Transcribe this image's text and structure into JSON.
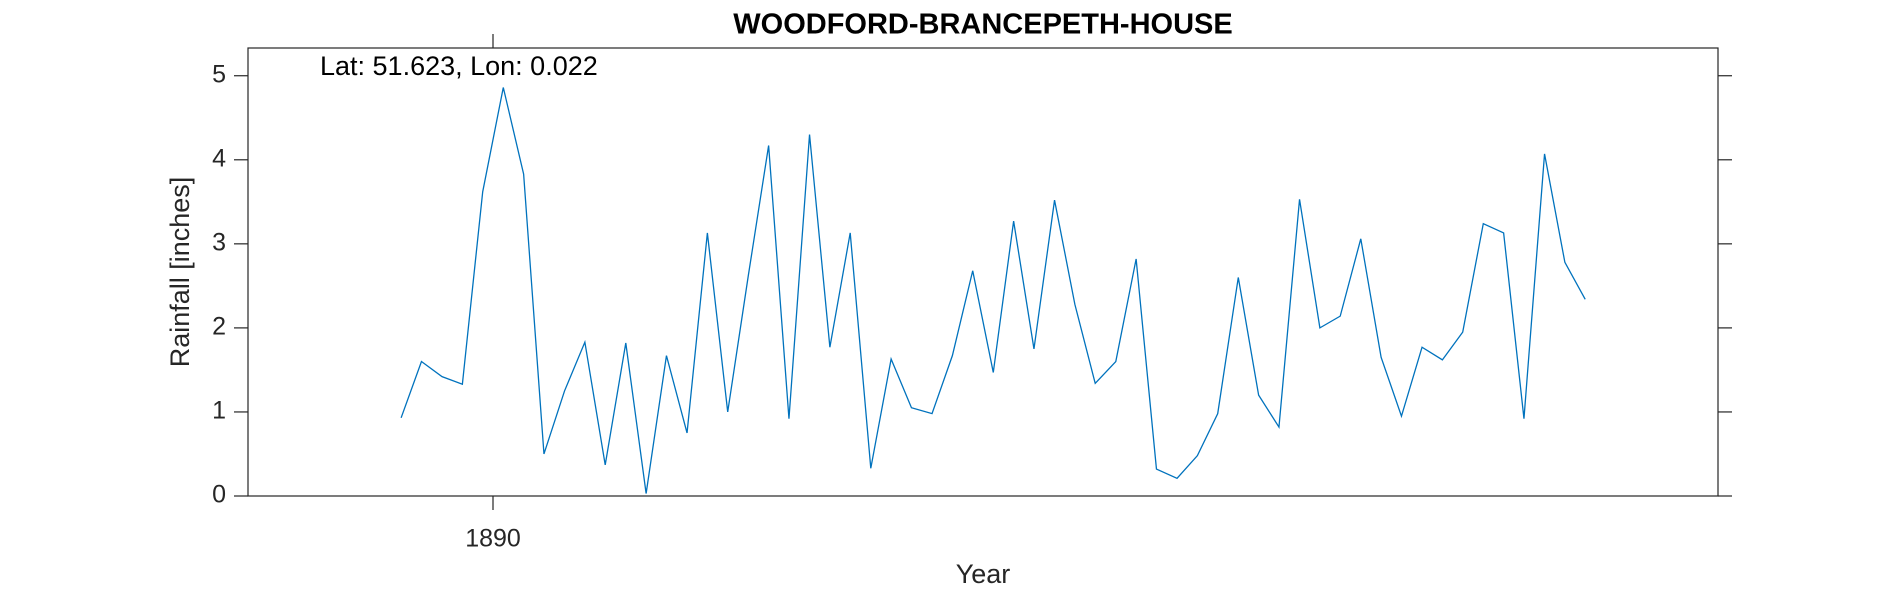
{
  "chart_data": {
    "type": "line",
    "title": "WOODFORD-BRANCEPETH-HOUSE",
    "annotation": "Lat: 51.623, Lon: 0.022",
    "xlabel": "Year",
    "ylabel": "Rainfall [inches]",
    "xlim": [
      1889,
      1895
    ],
    "xticks": [
      1890
    ],
    "ylim": [
      0,
      5.33
    ],
    "yticks": [
      0,
      1,
      2,
      3,
      4,
      5
    ],
    "grid": false,
    "x": [
      1889.625,
      1889.708,
      1889.792,
      1889.875,
      1889.958,
      1890.042,
      1890.125,
      1890.208,
      1890.292,
      1890.375,
      1890.458,
      1890.542,
      1890.625,
      1890.708,
      1890.792,
      1890.875,
      1890.958,
      1891.042,
      1891.125,
      1891.208,
      1891.292,
      1891.375,
      1891.458,
      1891.542,
      1891.625,
      1891.708,
      1891.792,
      1891.875,
      1891.958,
      1892.042,
      1892.125,
      1892.208,
      1892.292,
      1892.375,
      1892.458,
      1892.542,
      1892.625,
      1892.708,
      1892.792,
      1892.875,
      1892.958,
      1893.042,
      1893.125,
      1893.208,
      1893.292,
      1893.375,
      1893.458,
      1893.542,
      1893.625,
      1893.708,
      1893.792,
      1893.875,
      1893.958,
      1894.042,
      1894.125,
      1894.208,
      1894.292,
      1894.375,
      1894.458
    ],
    "series": [
      {
        "color": "#0072bd",
        "values": [
          0.93,
          1.6,
          1.42,
          1.33,
          3.62,
          4.86,
          3.83,
          0.5,
          1.25,
          1.83,
          0.37,
          1.82,
          0.03,
          1.67,
          0.75,
          3.13,
          1.0,
          2.62,
          4.17,
          0.92,
          4.3,
          1.77,
          3.13,
          0.33,
          1.63,
          1.05,
          0.98,
          1.67,
          2.68,
          1.47,
          3.27,
          1.75,
          3.52,
          2.28,
          1.34,
          1.6,
          2.82,
          0.32,
          0.21,
          0.48,
          0.98,
          2.6,
          1.2,
          0.82,
          3.53,
          2.0,
          2.14,
          3.06,
          1.65,
          0.95,
          1.77,
          1.62,
          1.95,
          3.24,
          3.13,
          0.92,
          4.07,
          2.78,
          2.34
        ]
      }
    ]
  }
}
